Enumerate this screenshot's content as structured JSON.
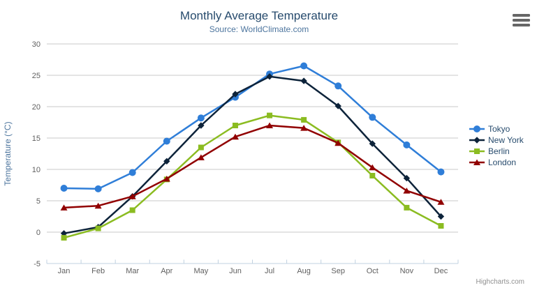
{
  "page": {
    "credits": "Highcharts.com",
    "export_icon": "hamburger-menu-icon"
  },
  "theme": {
    "background": "#ffffff",
    "title_color": "#274b6d",
    "subtitle_color": "#4d759e",
    "axis_label_color": "#606060",
    "axis_title_color": "#4d759e",
    "legend_text_color": "#274b6d",
    "grid_color": "#c9c9c9",
    "axis_line_color": "#c0d0e0",
    "credits_color": "#909090",
    "export_icon_color": "#666666"
  },
  "chart_data": {
    "type": "line",
    "title": "Monthly Average Temperature",
    "subtitle": "Source: WorldClimate.com",
    "xlabel": "",
    "ylabel": "Temperature (°C)",
    "categories": [
      "Jan",
      "Feb",
      "Mar",
      "Apr",
      "May",
      "Jun",
      "Jul",
      "Aug",
      "Sep",
      "Oct",
      "Nov",
      "Dec"
    ],
    "ylim": [
      -5,
      30
    ],
    "y_ticks": [
      30,
      25,
      20,
      15,
      10,
      5,
      0,
      -5
    ],
    "y_tick_interval": 5,
    "grid": true,
    "legend_position": "right",
    "series": [
      {
        "name": "Tokyo",
        "color": "#2f7ed8",
        "marker": "circle",
        "values": [
          7.0,
          6.9,
          9.5,
          14.5,
          18.2,
          21.5,
          25.2,
          26.5,
          23.3,
          18.3,
          13.9,
          9.6
        ]
      },
      {
        "name": "New York",
        "color": "#0d233a",
        "marker": "diamond",
        "values": [
          -0.2,
          0.8,
          5.7,
          11.3,
          17.0,
          22.0,
          24.8,
          24.1,
          20.1,
          14.1,
          8.6,
          2.5
        ]
      },
      {
        "name": "Berlin",
        "color": "#8bbc21",
        "marker": "square",
        "values": [
          -0.9,
          0.6,
          3.5,
          8.4,
          13.5,
          17.0,
          18.6,
          17.9,
          14.3,
          9.0,
          3.9,
          1.0
        ]
      },
      {
        "name": "London",
        "color": "#910000",
        "marker": "triangle",
        "values": [
          3.9,
          4.2,
          5.7,
          8.5,
          11.9,
          15.2,
          17.0,
          16.6,
          14.2,
          10.3,
          6.6,
          4.8
        ]
      }
    ]
  }
}
